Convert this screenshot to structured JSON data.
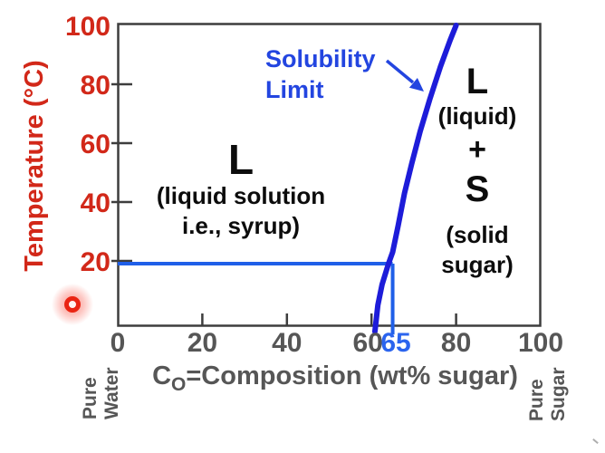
{
  "colors": {
    "red": "#d22819",
    "blue_line": "#1f5fe8",
    "blue_curve": "#1d1cd9",
    "blue_text": "#2345e0",
    "axis": "#3d3d3d",
    "tick_label_gray": "#565656",
    "black": "#0c0c0c"
  },
  "y_axis": {
    "title": "Temperature (°C)",
    "tick_labels": [
      "100",
      "80",
      "60",
      "40",
      "20"
    ]
  },
  "x_axis": {
    "title_prefix": "C",
    "title_sub": "O",
    "title_rest": "=Composition (wt% sugar)",
    "tick_labels": [
      "0",
      "20",
      "40",
      "60",
      "80",
      "100"
    ],
    "highlight_tick_label": "65"
  },
  "edge_labels": {
    "bottom_left_line1": "Pure",
    "bottom_left_line2": "Water",
    "bottom_right_line1": "Pure",
    "bottom_right_line2": "Sugar"
  },
  "callout": {
    "line1": "Solubility",
    "line2": "Limit"
  },
  "regions": {
    "syrup": {
      "phase": "L",
      "desc1": "(liquid solution",
      "desc2": "i.e., syrup)"
    },
    "two_phase": {
      "phase_liquid": "L",
      "desc_liquid": "(liquid)",
      "plus": "+",
      "phase_solid": "S",
      "desc_solid1": "(solid",
      "desc_solid2": "sugar)"
    }
  },
  "chart_data": {
    "type": "line",
    "xlabel": "C_O=Composition (wt% sugar)",
    "ylabel": "Temperature (°C)",
    "xlim": [
      0,
      100
    ],
    "ylim": [
      0,
      100
    ],
    "x_ticks": [
      0,
      20,
      40,
      60,
      80,
      100
    ],
    "y_ticks": [
      100,
      80,
      60,
      40,
      20
    ],
    "grid": false,
    "legend": false,
    "highlighted_composition": 65,
    "series": [
      {
        "name": "Solubility Limit",
        "color": "#1d1cd9",
        "points": [
          [
            60.8,
            -4
          ],
          [
            61.5,
            5
          ],
          [
            62.5,
            12
          ],
          [
            64,
            19
          ],
          [
            65,
            23
          ],
          [
            66.3,
            32
          ],
          [
            67.8,
            43
          ],
          [
            69.5,
            53
          ],
          [
            71.5,
            64
          ],
          [
            73.8,
            75
          ],
          [
            76.3,
            86
          ],
          [
            78.6,
            95
          ],
          [
            80,
            100
          ]
        ]
      }
    ],
    "annotation_lines": [
      {
        "name": "tie-line-horizontal",
        "from": [
          0,
          20
        ],
        "to": [
          65,
          20
        ]
      },
      {
        "name": "tie-line-vertical",
        "from": [
          65,
          20
        ],
        "to": [
          65,
          -5
        ]
      }
    ],
    "region_labels": [
      "L (liquid solution i.e., syrup)",
      "L (liquid) + S (solid sugar)"
    ],
    "annotations": [
      {
        "text": "Solubility Limit",
        "arrow_to": [
          72,
          78
        ]
      }
    ]
  }
}
